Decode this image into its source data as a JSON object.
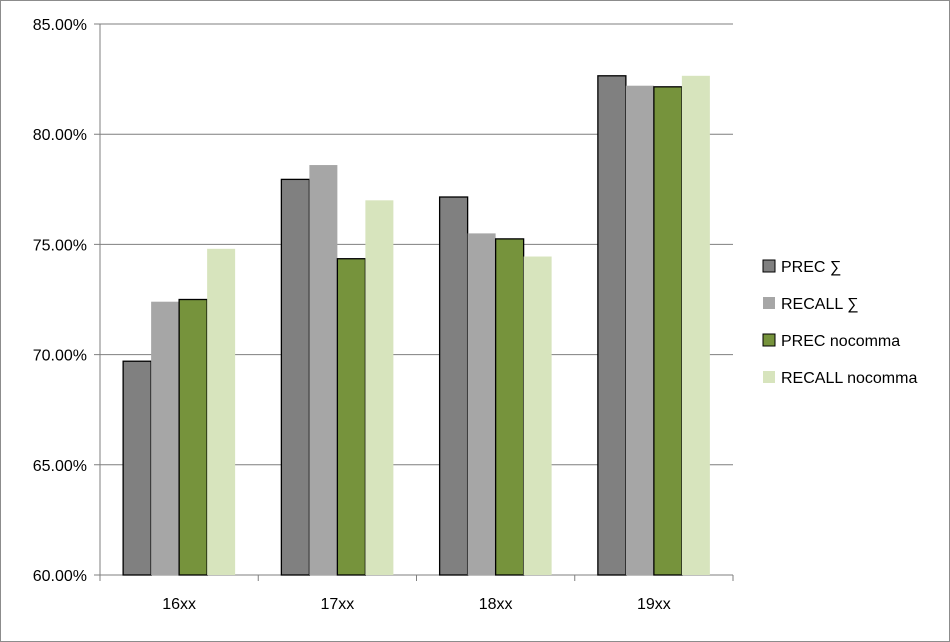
{
  "chart_data": {
    "type": "bar",
    "title": "",
    "xlabel": "",
    "ylabel": "",
    "categories": [
      "16xx",
      "17xx",
      "18xx",
      "19xx"
    ],
    "series": [
      {
        "name": "PREC ∑",
        "values": [
          69.7,
          77.95,
          77.15,
          82.65
        ],
        "color": "#808080",
        "stroke": "#000000"
      },
      {
        "name": "RECALL ∑",
        "values": [
          72.4,
          78.6,
          75.5,
          82.2
        ],
        "color": "#a6a6a6",
        "stroke": "none"
      },
      {
        "name": "PREC nocomma",
        "values": [
          72.5,
          74.35,
          75.25,
          82.15
        ],
        "color": "#76933c",
        "stroke": "#000000"
      },
      {
        "name": "RECALL nocomma",
        "values": [
          74.8,
          77.0,
          74.45,
          82.65
        ],
        "color": "#d7e4bd",
        "stroke": "none"
      }
    ],
    "ylim": [
      60,
      85
    ],
    "yticks": [
      60,
      65,
      70,
      75,
      80,
      85
    ],
    "ytick_labels": [
      "60.00%",
      "65.00%",
      "70.00%",
      "75.00%",
      "80.00%",
      "85.00%"
    ],
    "grid": true,
    "legend_position": "right"
  }
}
